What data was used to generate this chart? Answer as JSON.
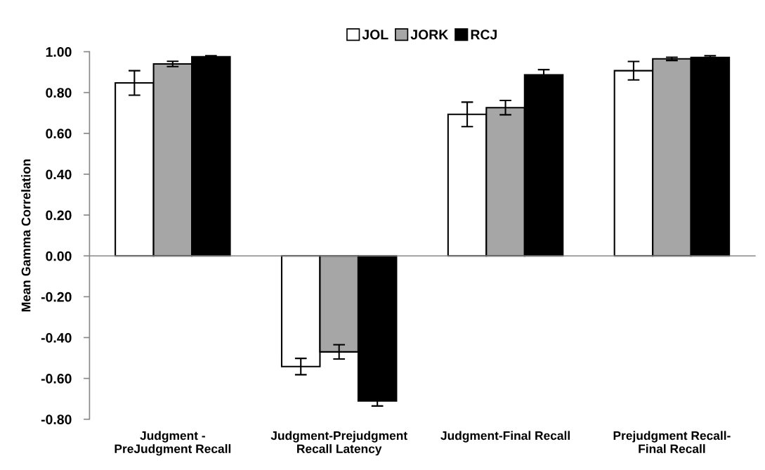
{
  "chart_data": {
    "type": "bar",
    "ylabel": "Mean Gamma Correlation",
    "categories": [
      "Judgment -\nPreJudgment Recall",
      "Judgment-Prejudgment\nRecall Latency",
      "Judgment-Final Recall",
      "Prejudgment Recall-\nFinal Recall"
    ],
    "series": [
      {
        "name": "JOL",
        "color": "#ffffff",
        "values": [
          0.847,
          -0.542,
          0.693,
          0.907
        ],
        "errors": [
          0.06,
          0.04,
          0.06,
          0.045
        ]
      },
      {
        "name": "JORK",
        "color": "#a6a6a6",
        "values": [
          0.94,
          -0.47,
          0.726,
          0.965
        ],
        "errors": [
          0.013,
          0.035,
          0.035,
          0.008
        ]
      },
      {
        "name": "RCJ",
        "color": "#000000",
        "values": [
          0.975,
          -0.71,
          0.887,
          0.972
        ],
        "errors": [
          0.005,
          0.025,
          0.025,
          0.008
        ]
      }
    ],
    "ylim": [
      -0.8,
      1.0
    ],
    "yticks": [
      {
        "value": -0.8,
        "label": "-0.80"
      },
      {
        "value": -0.6,
        "label": "-0.60"
      },
      {
        "value": -0.4,
        "label": "-0.40"
      },
      {
        "value": -0.2,
        "label": "-0.20"
      },
      {
        "value": 0,
        "label": "0.00"
      },
      {
        "value": 0.2,
        "label": "0.20"
      },
      {
        "value": 0.4,
        "label": "0.40"
      },
      {
        "value": 0.6,
        "label": "0.60"
      },
      {
        "value": 0.8,
        "label": "0.80"
      },
      {
        "value": 1.0,
        "label": "1.00"
      }
    ],
    "legend": "top"
  }
}
